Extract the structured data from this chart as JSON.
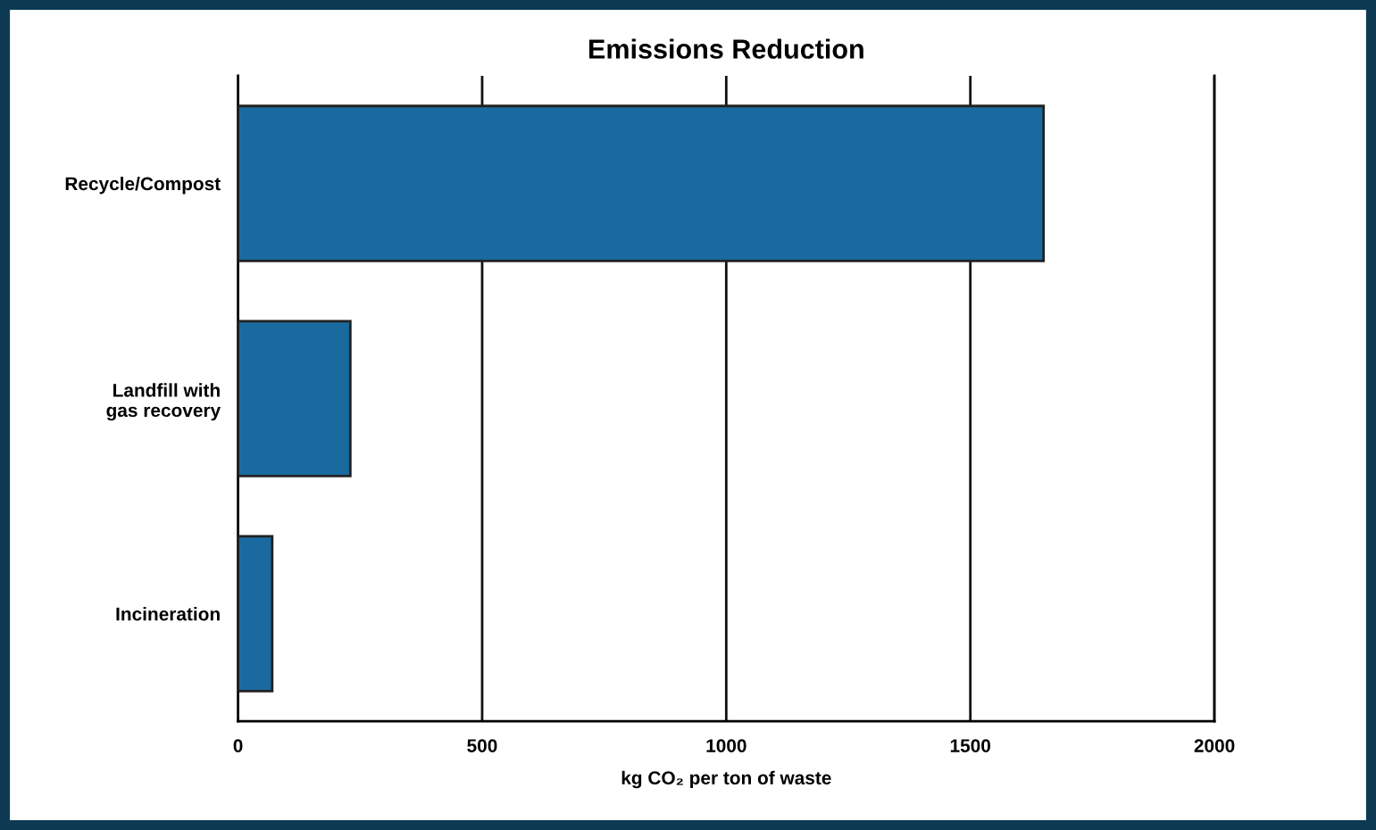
{
  "chart_data": {
    "type": "bar",
    "orientation": "horizontal",
    "title": "Emissions Reduction",
    "xlabel": "kg CO₂ per ton of waste",
    "categories": [
      "Recycle/Compost",
      "Landfill with\ngas recovery",
      "Incineration"
    ],
    "values": [
      1650,
      230,
      70
    ],
    "color": "#1a6aa0",
    "xlim": [
      0,
      2000
    ],
    "xticks": [
      0,
      500,
      1000,
      1500,
      2000
    ],
    "grid": "x"
  }
}
